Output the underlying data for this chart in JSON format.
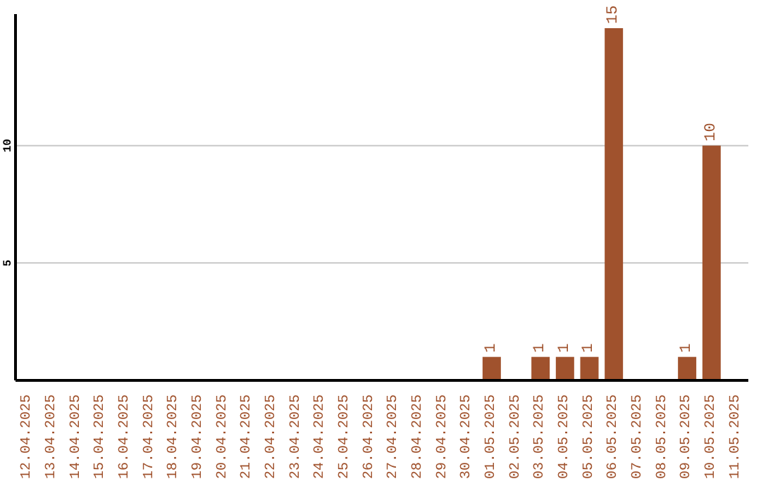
{
  "chart_data": {
    "type": "bar",
    "categories": [
      "12.04.2025",
      "13.04.2025",
      "14.04.2025",
      "15.04.2025",
      "16.04.2025",
      "17.04.2025",
      "18.04.2025",
      "19.04.2025",
      "20.04.2025",
      "21.04.2025",
      "22.04.2025",
      "23.04.2025",
      "24.04.2025",
      "25.04.2025",
      "26.04.2025",
      "27.04.2025",
      "28.04.2025",
      "29.04.2025",
      "30.04.2025",
      "01.05.2025",
      "02.05.2025",
      "03.05.2025",
      "04.05.2025",
      "05.05.2025",
      "06.05.2025",
      "07.05.2025",
      "08.05.2025",
      "09.05.2025",
      "10.05.2025",
      "11.05.2025"
    ],
    "values": [
      0,
      0,
      0,
      0,
      0,
      0,
      0,
      0,
      0,
      0,
      0,
      0,
      0,
      0,
      0,
      0,
      0,
      0,
      0,
      1,
      0,
      1,
      1,
      1,
      15,
      0,
      0,
      1,
      10,
      0
    ],
    "value_labels": [
      null,
      null,
      null,
      null,
      null,
      null,
      null,
      null,
      null,
      null,
      null,
      null,
      null,
      null,
      null,
      null,
      null,
      null,
      null,
      "1",
      null,
      "1",
      "1",
      "1",
      "15",
      null,
      null,
      "1",
      "10",
      null
    ],
    "color": "#a0522d",
    "ylim": [
      0,
      15.6
    ],
    "yticks": [
      5,
      10
    ],
    "grid": "y"
  }
}
